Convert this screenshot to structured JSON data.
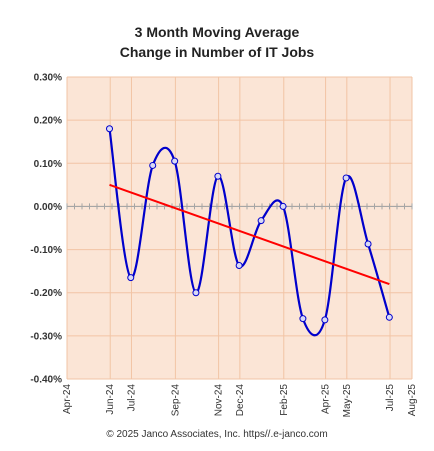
{
  "chart_data": {
    "type": "line",
    "title_lines": [
      "3 Month Moving Average",
      "Change in Number of IT Jobs"
    ],
    "xlabel": "",
    "ylabel": "",
    "ylim": [
      -0.4,
      0.3
    ],
    "y_ticks": [
      {
        "value": 0.3,
        "label": "0.30%"
      },
      {
        "value": 0.2,
        "label": "0.20%"
      },
      {
        "value": 0.1,
        "label": "0.10%"
      },
      {
        "value": 0.0,
        "label": "0.00%"
      },
      {
        "value": -0.1,
        "label": "-0.10%"
      },
      {
        "value": -0.2,
        "label": "-0.20%"
      },
      {
        "value": -0.3,
        "label": "-0.30%"
      },
      {
        "value": -0.4,
        "label": "-0.40%"
      }
    ],
    "x_range": [
      "2024-04-01",
      "2025-08-01"
    ],
    "x_ticks": [
      {
        "date": "2024-04-01",
        "label": "Apr-24"
      },
      {
        "date": "2024-06-01",
        "label": "Jun-24"
      },
      {
        "date": "2024-07-01",
        "label": "Jul-24"
      },
      {
        "date": "2024-09-01",
        "label": "Sep-24"
      },
      {
        "date": "2024-11-01",
        "label": "Nov-24"
      },
      {
        "date": "2024-12-01",
        "label": "Dec-24"
      },
      {
        "date": "2025-02-01",
        "label": "Feb-25"
      },
      {
        "date": "2025-04-01",
        "label": "Apr-25"
      },
      {
        "date": "2025-05-01",
        "label": "May-25"
      },
      {
        "date": "2025-07-01",
        "label": "Jul-25"
      },
      {
        "date": "2025-08-01",
        "label": "Aug-25"
      }
    ],
    "series": [
      {
        "color": "#0000cc",
        "points": [
          {
            "date": "2024-05-31",
            "value": 0.18
          },
          {
            "date": "2024-06-30",
            "value": -0.165
          },
          {
            "date": "2024-07-31",
            "value": 0.095
          },
          {
            "date": "2024-08-31",
            "value": 0.105
          },
          {
            "date": "2024-09-30",
            "value": -0.2
          },
          {
            "date": "2024-10-31",
            "value": 0.07
          },
          {
            "date": "2024-11-30",
            "value": -0.137
          },
          {
            "date": "2024-12-31",
            "value": -0.033
          },
          {
            "date": "2025-01-31",
            "value": 0.0
          },
          {
            "date": "2025-02-28",
            "value": -0.26
          },
          {
            "date": "2025-03-31",
            "value": -0.263
          },
          {
            "date": "2025-04-30",
            "value": 0.066
          },
          {
            "date": "2025-05-31",
            "value": -0.087
          },
          {
            "date": "2025-06-30",
            "value": -0.257
          }
        ]
      }
    ],
    "trendline": {
      "color": "#ff0000",
      "points": [
        {
          "date": "2024-05-31",
          "value": 0.05
        },
        {
          "date": "2025-06-30",
          "value": -0.18
        }
      ]
    },
    "plot_background": "#fbe5d6",
    "grid_color": "#f2c4a5",
    "grid": true,
    "legend": "none"
  },
  "footer": "© 2025 Janco Associates, Inc. https//.e-janco.com"
}
